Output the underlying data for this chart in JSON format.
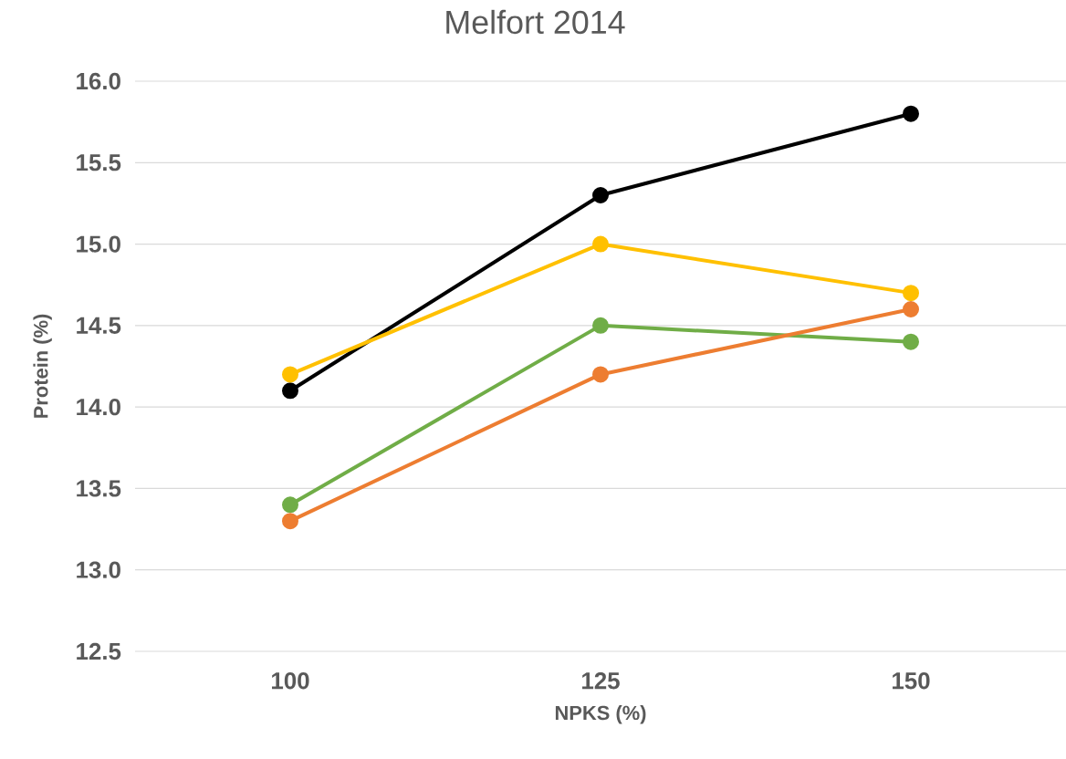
{
  "chart_data": {
    "type": "line",
    "title": "Melfort 2014",
    "xlabel": "NPKS (%)",
    "ylabel": "Protein (%)",
    "categories": [
      "100",
      "125",
      "150"
    ],
    "series": [
      {
        "color": "#000000",
        "values": [
          14.1,
          15.3,
          15.8
        ]
      },
      {
        "color": "#ffc000",
        "values": [
          14.2,
          15.0,
          14.7
        ]
      },
      {
        "color": "#70ad47",
        "values": [
          13.4,
          14.5,
          14.4
        ]
      },
      {
        "color": "#ed7d31",
        "values": [
          13.3,
          14.2,
          14.6
        ]
      }
    ],
    "ylim": [
      12.5,
      16.0
    ],
    "yticks": [
      {
        "value": 12.5,
        "label": "12.5"
      },
      {
        "value": 13,
        "label": "13.0"
      },
      {
        "value": 13.5,
        "label": "13.5"
      },
      {
        "value": 14,
        "label": "14.0"
      },
      {
        "value": 14.5,
        "label": "14.5"
      },
      {
        "value": 15,
        "label": "15.0"
      },
      {
        "value": 15.5,
        "label": "15.5"
      },
      {
        "value": 16,
        "label": "16.0"
      }
    ],
    "grid": "y",
    "marker": "circle",
    "line_style": "solid"
  }
}
